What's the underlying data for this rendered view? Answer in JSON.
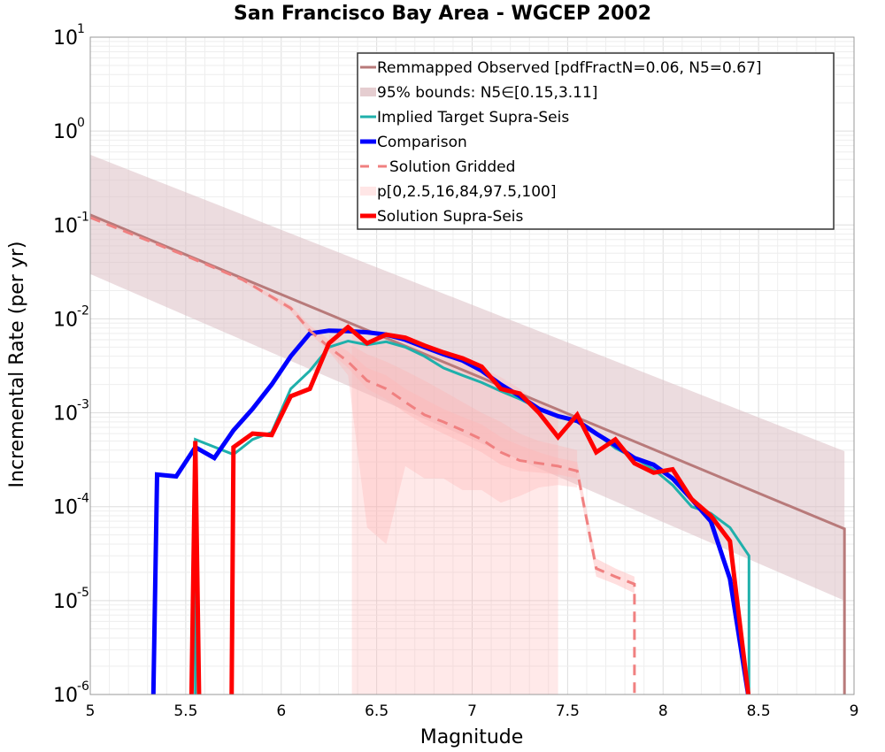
{
  "chart_data": {
    "type": "line",
    "title": "San Francisco Bay Area - WGCEP 2002",
    "xlabel": "Magnitude",
    "ylabel": "Incremental Rate (per yr)",
    "xlim": [
      5,
      9
    ],
    "ylim": [
      1e-06,
      10
    ],
    "y_scale": "log",
    "grid": true,
    "legend_position": "top-right",
    "x_ticks": [
      "5",
      "5.5",
      "6",
      "6.5",
      "7",
      "7.5",
      "8",
      "8.5",
      "9"
    ],
    "y_ticks": [
      {
        "base": "10",
        "exp": "-6"
      },
      {
        "base": "10",
        "exp": "-5"
      },
      {
        "base": "10",
        "exp": "-4"
      },
      {
        "base": "10",
        "exp": "-3"
      },
      {
        "base": "10",
        "exp": "-2"
      },
      {
        "base": "10",
        "exp": "-1"
      },
      {
        "base": "10",
        "exp": "0"
      },
      {
        "base": "10",
        "exp": "1"
      }
    ],
    "series": [
      {
        "name": "Remmapped Observed [pdfFractN=0.06, N5=0.67]",
        "kind": "line",
        "color": "#b87a7a",
        "width": 3,
        "dash": "",
        "x": [
          5.0,
          8.95,
          8.95
        ],
        "y": [
          0.128,
          5.8e-05,
          5e-07
        ]
      },
      {
        "name": "95% bounds: N5∈[0.15,3.11]",
        "kind": "band",
        "color": "#dcc0c4",
        "opacity": 0.55,
        "x": [
          5.0,
          8.95,
          8.95
        ],
        "y_low": [
          0.03,
          1e-05,
          1e-05
        ],
        "y_high": [
          0.56,
          0.00039,
          0.00039
        ]
      },
      {
        "name": "Implied Target Supra-Seis",
        "kind": "line",
        "color": "#1fb0ab",
        "width": 3,
        "dash": "",
        "x": [
          5.55,
          5.55,
          5.75,
          5.85,
          5.95,
          6.05,
          6.15,
          6.25,
          6.35,
          6.45,
          6.55,
          6.65,
          6.75,
          6.85,
          6.95,
          7.05,
          7.15,
          7.25,
          7.35,
          7.45,
          7.55,
          7.65,
          7.75,
          7.85,
          7.95,
          8.05,
          8.15,
          8.25,
          8.35,
          8.45,
          8.45
        ],
        "y": [
          5e-07,
          0.00052,
          0.00036,
          0.00052,
          0.00062,
          0.0018,
          0.0028,
          0.005,
          0.0058,
          0.0053,
          0.0057,
          0.005,
          0.004,
          0.003,
          0.0025,
          0.0021,
          0.0017,
          0.0014,
          0.0011,
          0.0009,
          0.0008,
          0.0006,
          0.00042,
          0.00033,
          0.00025,
          0.00017,
          0.0001,
          8.5e-05,
          6e-05,
          3e-05,
          5e-07
        ]
      },
      {
        "name": "Comparison",
        "kind": "line",
        "color": "#0000ff",
        "width": 5,
        "dash": "",
        "x": [
          5.33,
          5.35,
          5.45,
          5.55,
          5.65,
          5.75,
          5.85,
          5.95,
          6.05,
          6.15,
          6.25,
          6.35,
          6.45,
          6.55,
          6.65,
          6.75,
          6.85,
          6.95,
          7.05,
          7.15,
          7.25,
          7.35,
          7.45,
          7.55,
          7.65,
          7.75,
          7.85,
          7.95,
          8.05,
          8.15,
          8.25,
          8.35,
          8.45
        ],
        "y": [
          5e-07,
          0.00022,
          0.00021,
          0.00043,
          0.00033,
          0.00065,
          0.0011,
          0.002,
          0.004,
          0.007,
          0.0075,
          0.0074,
          0.0072,
          0.0068,
          0.006,
          0.005,
          0.0042,
          0.0036,
          0.0028,
          0.002,
          0.0015,
          0.0011,
          0.00092,
          0.00082,
          0.0006,
          0.00045,
          0.00033,
          0.00028,
          0.0002,
          0.00012,
          7e-05,
          1.7e-05,
          5e-07
        ]
      },
      {
        "name": "Solution Gridded",
        "kind": "line",
        "color": "#f08080",
        "width": 3,
        "dash": "12,8",
        "x": [
          5.0,
          5.5,
          5.8,
          6.05,
          6.15,
          6.25,
          6.35,
          6.45,
          6.55,
          6.65,
          6.75,
          6.85,
          6.95,
          7.05,
          7.15,
          7.25,
          7.35,
          7.45,
          7.55,
          7.65,
          7.75,
          7.85,
          7.85
        ],
        "y": [
          0.12,
          0.047,
          0.026,
          0.013,
          0.0075,
          0.005,
          0.0035,
          0.0022,
          0.0018,
          0.0013,
          0.00095,
          0.0008,
          0.00065,
          0.00052,
          0.00038,
          0.00031,
          0.00029,
          0.00027,
          0.00024,
          2.2e-05,
          1.8e-05,
          1.5e-05,
          5e-07
        ]
      },
      {
        "name": "p[0,2.5,16,84,97.5,100]",
        "kind": "band",
        "color": "#ffb0b0",
        "opacity": 0.28,
        "x": [
          6.37,
          6.45,
          6.55,
          6.65,
          6.75,
          6.85,
          6.95,
          7.05,
          7.15,
          7.25,
          7.35,
          7.45
        ],
        "y_low": [
          5e-07,
          5e-07,
          5e-07,
          5e-07,
          5e-07,
          5e-07,
          5e-07,
          5e-07,
          5e-07,
          5e-07,
          5e-07,
          5e-07
        ],
        "y_high": [
          0.007,
          0.006,
          0.0068,
          0.0062,
          0.0052,
          0.0042,
          0.0036,
          0.003,
          0.0024,
          0.0018,
          0.0013,
          0.001
        ]
      },
      {
        "name": "",
        "kind": "band",
        "color": "#ffb0b0",
        "opacity": 0.3,
        "x": [
          6.25,
          6.35,
          6.45,
          6.55,
          6.65,
          6.75,
          6.85,
          6.95,
          7.05,
          7.15,
          7.25,
          7.35,
          7.45,
          7.55
        ],
        "y_low": [
          0.0045,
          0.0025,
          6e-05,
          4e-05,
          0.00027,
          0.0002,
          0.0002,
          0.00015,
          0.00015,
          0.00011,
          0.00013,
          0.00016,
          0.00017,
          0.00016
        ],
        "y_high": [
          0.0068,
          0.0055,
          0.0042,
          0.0035,
          0.0028,
          0.0022,
          0.0017,
          0.0013,
          0.001,
          0.0008,
          0.0006,
          0.0005,
          0.00045,
          0.0004
        ]
      },
      {
        "name": "",
        "kind": "band",
        "color": "#ffb8b8",
        "opacity": 0.45,
        "x": [
          5.0,
          5.5,
          5.8,
          6.05,
          6.15,
          6.25,
          6.35,
          6.45,
          6.55,
          6.65,
          6.75,
          6.85,
          6.95,
          7.05,
          7.15,
          7.25,
          7.35,
          7.45,
          7.55,
          7.65,
          7.75,
          7.85
        ],
        "y_low": [
          0.118,
          0.046,
          0.025,
          0.012,
          0.007,
          0.0045,
          0.003,
          0.0018,
          0.0014,
          0.001,
          0.00075,
          0.0006,
          0.00048,
          0.00038,
          0.00028,
          0.00024,
          0.00023,
          0.00022,
          0.0002,
          1.8e-05,
          1.5e-05,
          1.2e-05
        ],
        "y_high": [
          0.122,
          0.048,
          0.027,
          0.014,
          0.0085,
          0.006,
          0.0045,
          0.003,
          0.0025,
          0.0018,
          0.0014,
          0.0011,
          0.0009,
          0.00075,
          0.00055,
          0.00045,
          0.00038,
          0.00033,
          0.0003,
          2.8e-05,
          2.2e-05,
          1.8e-05
        ]
      },
      {
        "name": "Solution Supra-Seis",
        "kind": "line",
        "color": "#ff0000",
        "width": 5,
        "dash": "",
        "x": [
          5.53,
          5.55,
          5.57,
          5.74,
          5.75,
          5.85,
          5.95,
          6.05,
          6.15,
          6.25,
          6.35,
          6.45,
          6.55,
          6.65,
          6.75,
          6.85,
          6.95,
          7.05,
          7.15,
          7.25,
          7.35,
          7.45,
          7.55,
          7.65,
          7.75,
          7.85,
          7.95,
          8.05,
          8.15,
          8.25,
          8.35,
          8.45
        ],
        "y": [
          5e-07,
          0.0005,
          5e-07,
          5e-07,
          0.00043,
          0.0006,
          0.00058,
          0.0015,
          0.0018,
          0.0055,
          0.0082,
          0.0055,
          0.0068,
          0.0063,
          0.0052,
          0.0044,
          0.0038,
          0.0031,
          0.0018,
          0.0016,
          0.001,
          0.00055,
          0.00095,
          0.00038,
          0.00052,
          0.00029,
          0.00023,
          0.00025,
          0.00012,
          8e-05,
          4.3e-05,
          5e-07
        ]
      }
    ],
    "legend": [
      {
        "label": "Remmapped Observed [pdfFractN=0.06, N5=0.67]",
        "style": "line",
        "color": "#b87a7a",
        "width": 3,
        "dash": ""
      },
      {
        "label": "95% bounds: N5∈[0.15,3.11]",
        "style": "band",
        "color": "#e5cdd0",
        "width": 10,
        "dash": ""
      },
      {
        "label": "Implied Target Supra-Seis",
        "style": "line",
        "color": "#1fb0ab",
        "width": 3,
        "dash": ""
      },
      {
        "label": "Comparison",
        "style": "line",
        "color": "#0000ff",
        "width": 5,
        "dash": ""
      },
      {
        "label": "Solution Gridded",
        "style": "line",
        "color": "#f08080",
        "width": 3,
        "dash": "10,10"
      },
      {
        "label": "p[0,2.5,16,84,97.5,100]",
        "style": "band",
        "color": "#ffe6e6",
        "width": 10,
        "dash": ""
      },
      {
        "label": "Solution Supra-Seis",
        "style": "line",
        "color": "#ff0000",
        "width": 5,
        "dash": ""
      }
    ]
  }
}
